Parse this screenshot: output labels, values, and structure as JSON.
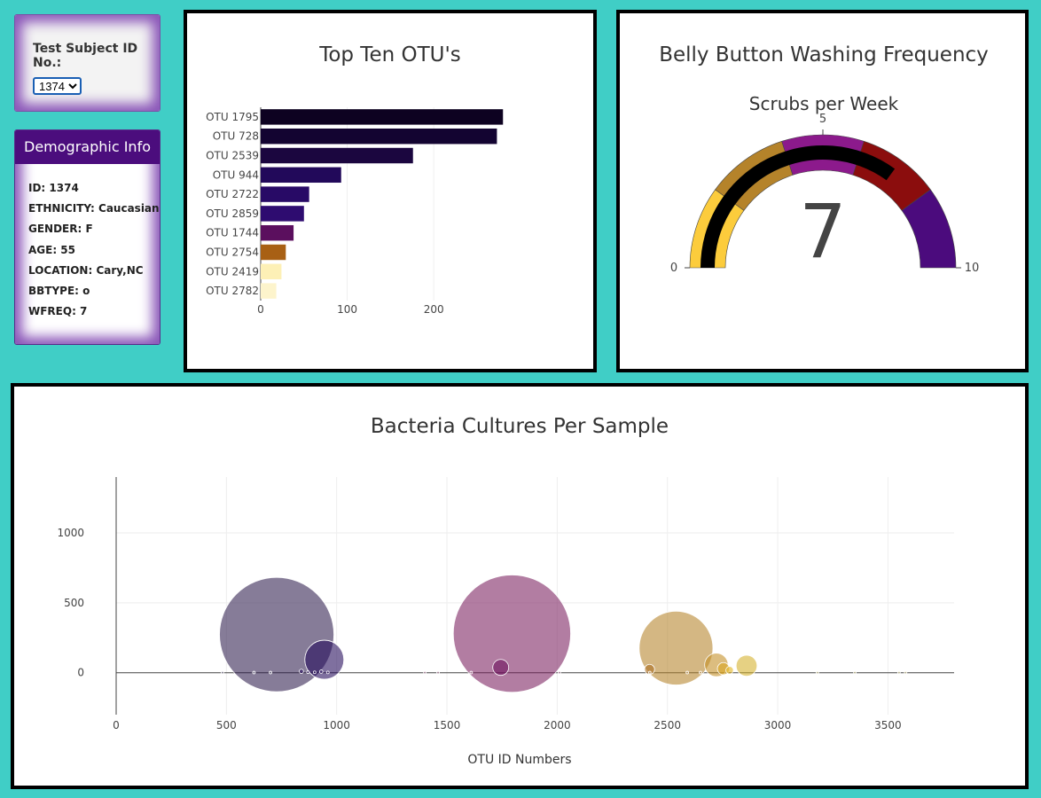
{
  "selector": {
    "label": "Test Subject ID No.:",
    "selected": "1374"
  },
  "demographics": {
    "title": "Demographic Info",
    "rows": [
      "ID: 1374",
      "ETHNICITY: Caucasian",
      "GENDER: F",
      "AGE: 55",
      "LOCATION: Cary,NC",
      "BBTYPE: o",
      "WFREQ: 7"
    ]
  },
  "chart_data": [
    {
      "type": "bar",
      "orientation": "horizontal",
      "title": "Top Ten OTU's",
      "categories": [
        "OTU 1795",
        "OTU 728",
        "OTU 2539",
        "OTU 944",
        "OTU 2722",
        "OTU 2859",
        "OTU 1744",
        "OTU 2754",
        "OTU 2419",
        "OTU 2782"
      ],
      "values": [
        280,
        273,
        176,
        93,
        56,
        50,
        38,
        29,
        24,
        18
      ],
      "colors": [
        "#0d0221",
        "#130431",
        "#1b063f",
        "#22095a",
        "#280a66",
        "#2e0c70",
        "#5b0f5e",
        "#a86014",
        "#fdf0b6",
        "#fdf4cc"
      ],
      "xticks": [
        0,
        100,
        200
      ],
      "xlim": [
        0,
        290
      ]
    },
    {
      "type": "gauge",
      "title": "Belly Button Washing Frequency",
      "subtitle": "Scrubs per Week",
      "value": 7,
      "range": [
        0,
        10
      ],
      "ticks": [
        0,
        5,
        10
      ],
      "steps": [
        {
          "from": 0,
          "to": 2,
          "color": "#fccc3c"
        },
        {
          "from": 2,
          "to": 4,
          "color": "#b5832a"
        },
        {
          "from": 4,
          "to": 6,
          "color": "#8c1a8c"
        },
        {
          "from": 6,
          "to": 8,
          "color": "#8b0d0d"
        },
        {
          "from": 8,
          "to": 10,
          "color": "#4b0b7d"
        }
      ],
      "bar_color": "#000000"
    },
    {
      "type": "scatter",
      "title": "Bacteria Cultures Per Sample",
      "xlabel": "OTU ID Numbers",
      "ylabel": "",
      "xlim": [
        0,
        3800
      ],
      "ylim": [
        -300,
        1400
      ],
      "xticks": [
        0,
        500,
        1000,
        1500,
        2000,
        2500,
        3000,
        3500
      ],
      "yticks": [
        0,
        500,
        1000
      ],
      "grid": true,
      "points": [
        {
          "x": 728,
          "y": 273,
          "size": 273,
          "color": "#2e1e4d"
        },
        {
          "x": 1795,
          "y": 280,
          "size": 280,
          "color": "#7b1f5e"
        },
        {
          "x": 2539,
          "y": 176,
          "size": 176,
          "color": "#b5832a"
        },
        {
          "x": 944,
          "y": 93,
          "size": 93,
          "color": "#22095a"
        },
        {
          "x": 2859,
          "y": 50,
          "size": 50,
          "color": "#d4b02a"
        },
        {
          "x": 2722,
          "y": 56,
          "size": 56,
          "color": "#c28e22"
        },
        {
          "x": 1744,
          "y": 38,
          "size": 38,
          "color": "#6a0f5c"
        },
        {
          "x": 2754,
          "y": 29,
          "size": 29,
          "color": "#d9a520"
        },
        {
          "x": 2419,
          "y": 24,
          "size": 24,
          "color": "#a86a1e"
        },
        {
          "x": 2782,
          "y": 18,
          "size": 18,
          "color": "#e0b21c"
        },
        {
          "x": 840,
          "y": 10,
          "size": 10,
          "color": "#22095a"
        },
        {
          "x": 930,
          "y": 8,
          "size": 8,
          "color": "#22095a"
        },
        {
          "x": 870,
          "y": 4,
          "size": 4,
          "color": "#22095a"
        },
        {
          "x": 900,
          "y": 3,
          "size": 3,
          "color": "#22095a"
        },
        {
          "x": 960,
          "y": 2,
          "size": 2,
          "color": "#22095a"
        },
        {
          "x": 482,
          "y": 1,
          "size": 2,
          "color": "#8a85a0"
        },
        {
          "x": 625,
          "y": 1,
          "size": 2,
          "color": "#8a85a0"
        },
        {
          "x": 700,
          "y": 1,
          "size": 2,
          "color": "#8a85a0"
        },
        {
          "x": 1400,
          "y": 1,
          "size": 2,
          "color": "#c08aa8"
        },
        {
          "x": 1460,
          "y": 1,
          "size": 2,
          "color": "#c08aa8"
        },
        {
          "x": 1610,
          "y": 1,
          "size": 2,
          "color": "#c08aa8"
        },
        {
          "x": 2010,
          "y": 1,
          "size": 2,
          "color": "#c08aa8"
        },
        {
          "x": 2420,
          "y": 1,
          "size": 2,
          "color": "#d4b07a"
        },
        {
          "x": 2590,
          "y": 1,
          "size": 2,
          "color": "#d4b07a"
        },
        {
          "x": 2650,
          "y": 1,
          "size": 2,
          "color": "#d4b07a"
        },
        {
          "x": 3180,
          "y": 1,
          "size": 2,
          "color": "#e0d8a0"
        },
        {
          "x": 3350,
          "y": 1,
          "size": 3,
          "color": "#e0d8a0"
        },
        {
          "x": 3550,
          "y": 1,
          "size": 2,
          "color": "#e0d8a0"
        },
        {
          "x": 3580,
          "y": 1,
          "size": 2,
          "color": "#e0d8a0"
        }
      ]
    }
  ]
}
